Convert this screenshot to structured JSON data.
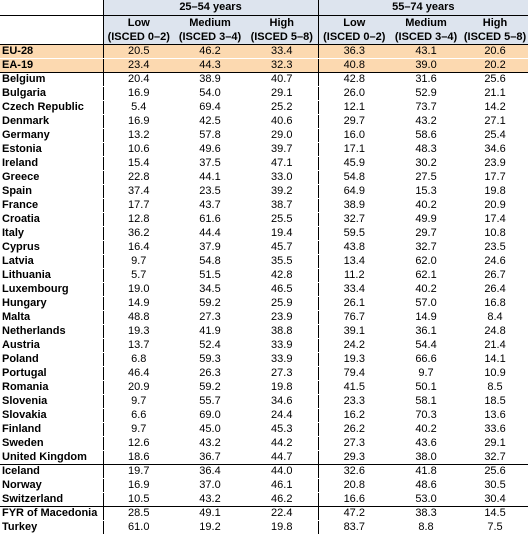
{
  "table": {
    "groups": [
      "25–54 years",
      "55–74 years"
    ],
    "levels": [
      {
        "name": "Low",
        "isced": "(ISCED 0–2)"
      },
      {
        "name": "Medium",
        "isced": "(ISCED 3–4)"
      },
      {
        "name": "High",
        "isced": "(ISCED 5–8)"
      }
    ],
    "sections": [
      {
        "highlight": true,
        "rows": [
          [
            "EU-28",
            "20.5",
            "46.2",
            "33.4",
            "36.3",
            "43.1",
            "20.6"
          ],
          [
            "EA-19",
            "23.4",
            "44.3",
            "32.3",
            "40.8",
            "39.0",
            "20.2"
          ]
        ]
      },
      {
        "highlight": false,
        "rows": [
          [
            "Belgium",
            "20.4",
            "38.9",
            "40.7",
            "42.8",
            "31.6",
            "25.6"
          ],
          [
            "Bulgaria",
            "16.9",
            "54.0",
            "29.1",
            "26.0",
            "52.9",
            "21.1"
          ],
          [
            "Czech Republic",
            "5.4",
            "69.4",
            "25.2",
            "12.1",
            "73.7",
            "14.2"
          ],
          [
            "Denmark",
            "16.9",
            "42.5",
            "40.6",
            "29.7",
            "43.2",
            "27.1"
          ],
          [
            "Germany",
            "13.2",
            "57.8",
            "29.0",
            "16.0",
            "58.6",
            "25.4"
          ],
          [
            "Estonia",
            "10.6",
            "49.6",
            "39.7",
            "17.1",
            "48.3",
            "34.6"
          ],
          [
            "Ireland",
            "15.4",
            "37.5",
            "47.1",
            "45.9",
            "30.2",
            "23.9"
          ],
          [
            "Greece",
            "22.8",
            "44.1",
            "33.0",
            "54.8",
            "27.5",
            "17.7"
          ],
          [
            "Spain",
            "37.4",
            "23.5",
            "39.2",
            "64.9",
            "15.3",
            "19.8"
          ],
          [
            "France",
            "17.7",
            "43.7",
            "38.7",
            "38.9",
            "40.2",
            "20.9"
          ],
          [
            "Croatia",
            "12.8",
            "61.6",
            "25.5",
            "32.7",
            "49.9",
            "17.4"
          ],
          [
            "Italy",
            "36.2",
            "44.4",
            "19.4",
            "59.5",
            "29.7",
            "10.8"
          ],
          [
            "Cyprus",
            "16.4",
            "37.9",
            "45.7",
            "43.8",
            "32.7",
            "23.5"
          ],
          [
            "Latvia",
            "9.7",
            "54.8",
            "35.5",
            "13.4",
            "62.0",
            "24.6"
          ],
          [
            "Lithuania",
            "5.7",
            "51.5",
            "42.8",
            "11.2",
            "62.1",
            "26.7"
          ],
          [
            "Luxembourg",
            "19.0",
            "34.5",
            "46.5",
            "33.4",
            "40.2",
            "26.4"
          ],
          [
            "Hungary",
            "14.9",
            "59.2",
            "25.9",
            "26.1",
            "57.0",
            "16.8"
          ],
          [
            "Malta",
            "48.8",
            "27.3",
            "23.9",
            "76.7",
            "14.9",
            "8.4"
          ],
          [
            "Netherlands",
            "19.3",
            "41.9",
            "38.8",
            "39.1",
            "36.1",
            "24.8"
          ],
          [
            "Austria",
            "13.7",
            "52.4",
            "33.9",
            "24.2",
            "54.4",
            "21.4"
          ],
          [
            "Poland",
            "6.8",
            "59.3",
            "33.9",
            "19.3",
            "66.6",
            "14.1"
          ],
          [
            "Portugal",
            "46.4",
            "26.3",
            "27.3",
            "79.4",
            "9.7",
            "10.9"
          ],
          [
            "Romania",
            "20.9",
            "59.2",
            "19.8",
            "41.5",
            "50.1",
            "8.5"
          ],
          [
            "Slovenia",
            "9.7",
            "55.7",
            "34.6",
            "23.3",
            "58.1",
            "18.5"
          ],
          [
            "Slovakia",
            "6.6",
            "69.0",
            "24.4",
            "16.2",
            "70.3",
            "13.6"
          ],
          [
            "Finland",
            "9.7",
            "45.0",
            "45.3",
            "26.2",
            "40.2",
            "33.6"
          ],
          [
            "Sweden",
            "12.6",
            "43.2",
            "44.2",
            "27.3",
            "43.6",
            "29.1"
          ],
          [
            "United Kingdom",
            "18.6",
            "36.7",
            "44.7",
            "29.3",
            "38.0",
            "32.7"
          ]
        ]
      },
      {
        "highlight": false,
        "rows": [
          [
            "Iceland",
            "19.7",
            "36.4",
            "44.0",
            "32.6",
            "41.8",
            "25.6"
          ],
          [
            "Norway",
            "16.9",
            "37.0",
            "46.1",
            "20.8",
            "48.6",
            "30.5"
          ],
          [
            "Switzerland",
            "10.5",
            "43.2",
            "46.2",
            "16.6",
            "53.0",
            "30.4"
          ]
        ]
      },
      {
        "highlight": false,
        "rows": [
          [
            "FYR of Macedonia",
            "28.5",
            "49.1",
            "22.4",
            "47.2",
            "38.3",
            "14.5"
          ],
          [
            "Turkey",
            "61.0",
            "19.2",
            "19.8",
            "83.7",
            "8.8",
            "7.5"
          ]
        ]
      }
    ]
  }
}
